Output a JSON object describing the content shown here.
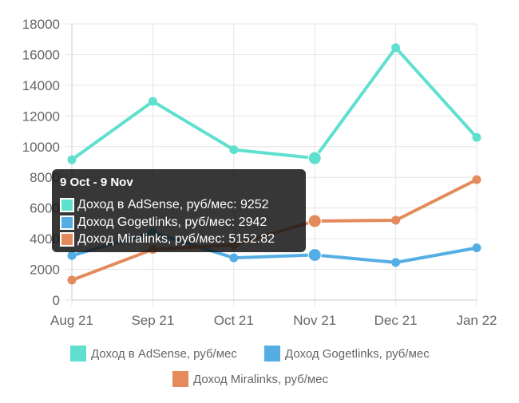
{
  "chart_data": {
    "type": "line",
    "categories": [
      "Aug 21",
      "Sep 21",
      "Oct 21",
      "Nov 21",
      "Dec 21",
      "Jan 22"
    ],
    "ylim": [
      0,
      18000
    ],
    "yticks": [
      "0",
      "2000",
      "4000",
      "6000",
      "8000",
      "10000",
      "12000",
      "14000",
      "16000",
      "18000"
    ],
    "grid": true,
    "legend_position": "bottom",
    "series": [
      {
        "name": "Доход в AdSense, руб/мес",
        "color": "#5fe0cf",
        "values": [
          9150,
          12950,
          9800,
          9252,
          16450,
          10600
        ]
      },
      {
        "name": "Доход Gogetlinks, руб/мес",
        "color": "#55aee3",
        "values": [
          2900,
          4400,
          2750,
          2942,
          2450,
          3400
        ]
      },
      {
        "name": "Доход Miralinks, руб/мес",
        "color": "#e48a5c",
        "values": [
          1300,
          3300,
          3600,
          5152.82,
          5200,
          7850
        ]
      }
    ],
    "highlight_index": 3
  },
  "tooltip": {
    "title": "9 Oct - 9 Nov",
    "rows": [
      {
        "label": "Доход в AdSense, руб/мес: 9252",
        "color": "#5fe0cf"
      },
      {
        "label": "Доход Gogetlinks, руб/мес: 2942",
        "color": "#55aee3"
      },
      {
        "label": "Доход Miralinks, руб/мес: 5152.82",
        "color": "#e48a5c"
      }
    ]
  }
}
